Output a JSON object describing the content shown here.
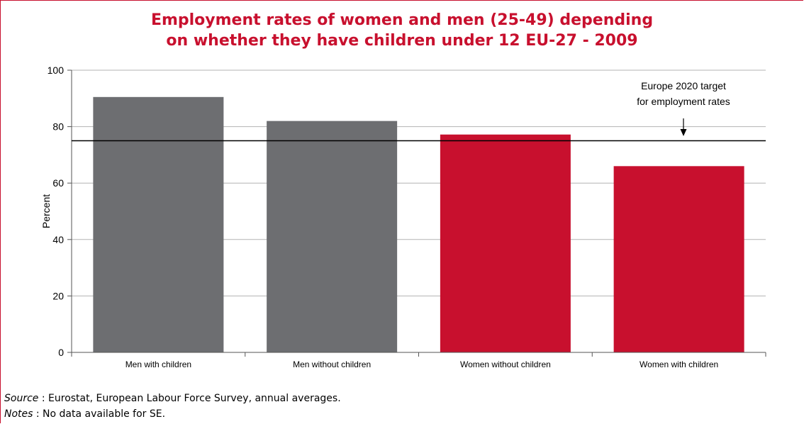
{
  "chart_data": {
    "type": "bar",
    "title": [
      "Employment rates of women and men (25-49) depending",
      "on whether they have children under 12 EU-27 - 2009"
    ],
    "xlabel": "",
    "ylabel": "Percent",
    "ylim": [
      0,
      100
    ],
    "yticks": [
      "0",
      "20",
      "40",
      "60",
      "80",
      "100"
    ],
    "categories": [
      "Men with children",
      "Men without children",
      "Women without children",
      "Women with children"
    ],
    "values": [
      90.5,
      82,
      77.2,
      66
    ],
    "bar_colors": [
      "#6d6e71",
      "#6d6e71",
      "#c8102e",
      "#c8102e"
    ],
    "grid": true,
    "reference_line": {
      "value": 75,
      "label": [
        "Europe 2020 target",
        "for employment rates"
      ]
    }
  },
  "footer": {
    "source_label": "Source",
    "source_text": " : Eurostat, European Labour Force Survey, annual averages.",
    "notes_label": "Notes",
    "notes_text": " : No data available for SE."
  }
}
